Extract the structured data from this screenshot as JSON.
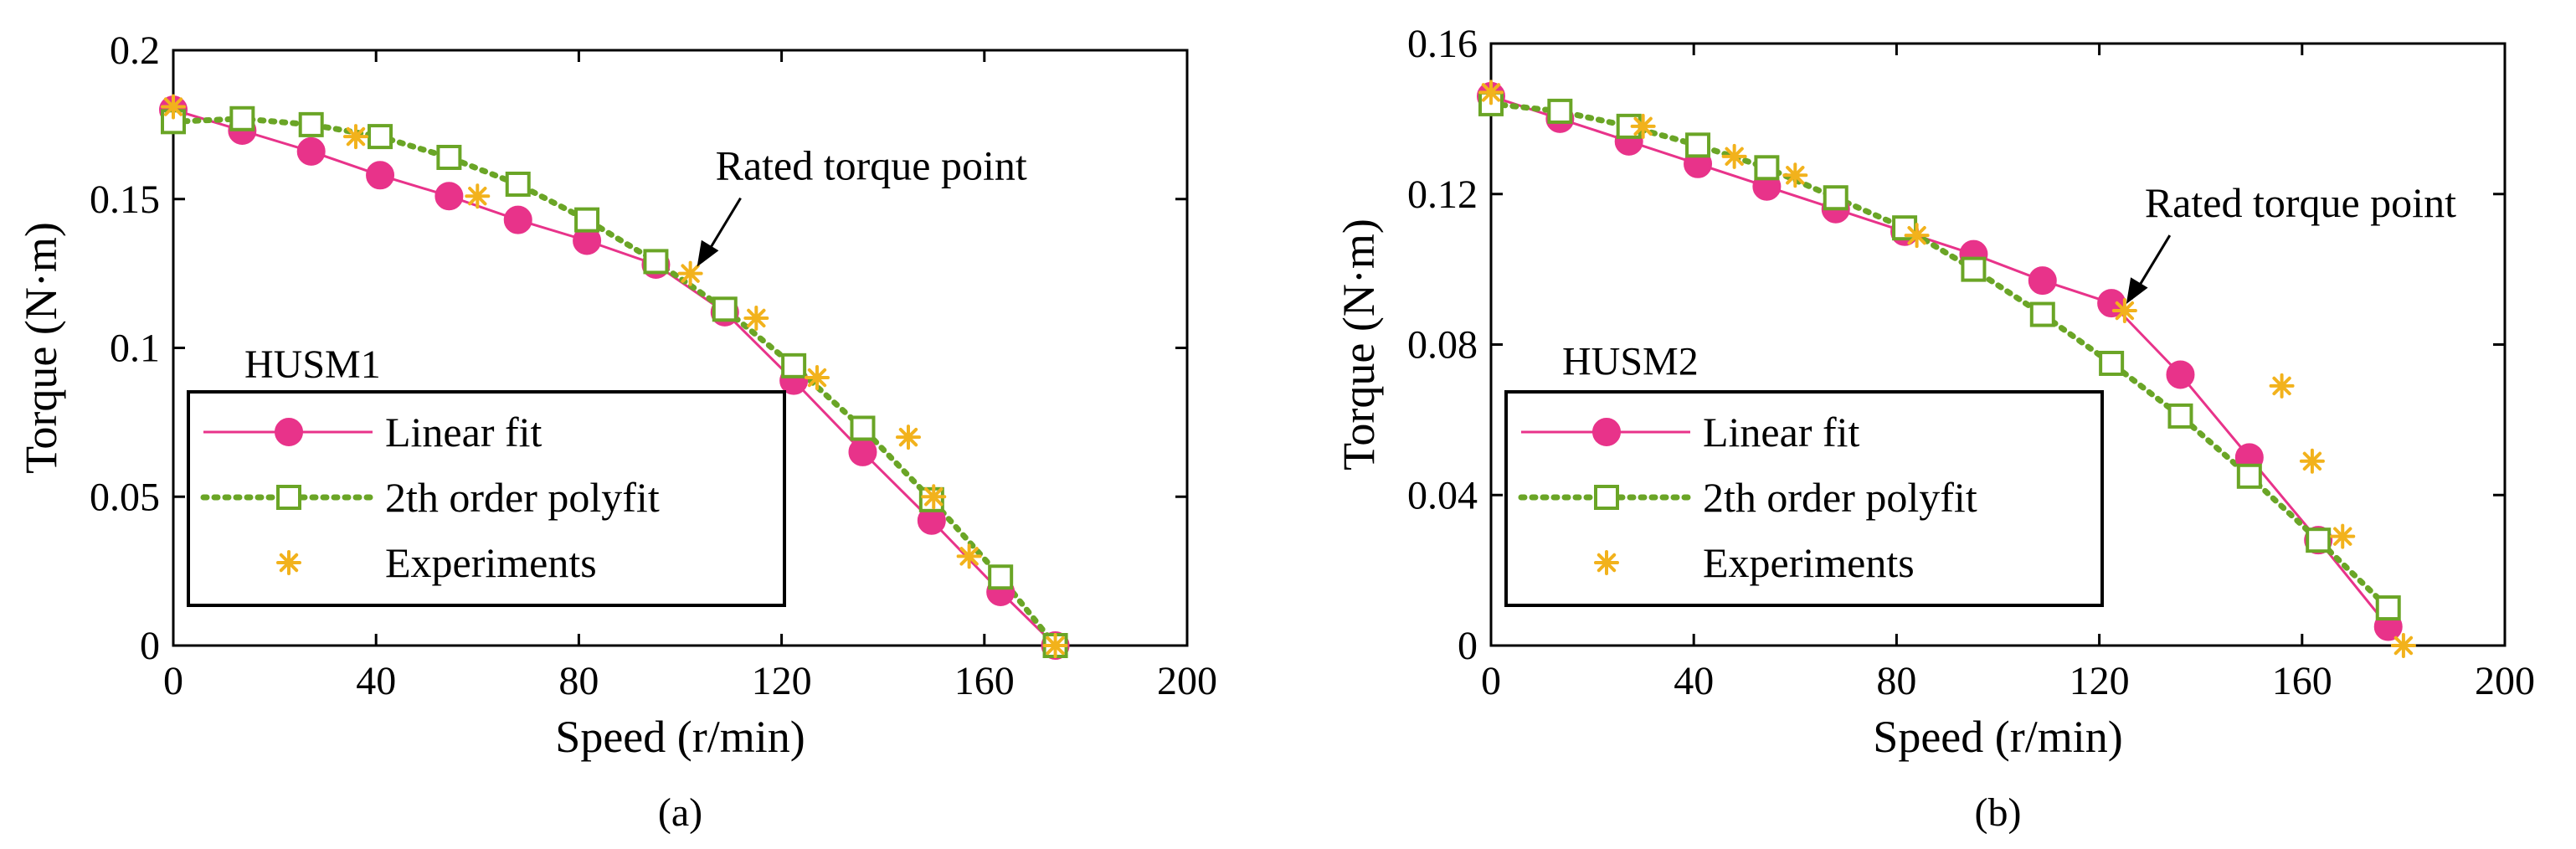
{
  "chart_data": [
    {
      "type": "line",
      "panel_label": "(a)",
      "xlabel": "Speed (r/min)",
      "ylabel": "Torque (N·m)",
      "xlim": [
        0,
        200
      ],
      "ylim": [
        0,
        0.2
      ],
      "xticks": [
        0,
        40,
        80,
        120,
        160,
        200
      ],
      "yticks": [
        0,
        0.05,
        0.1,
        0.15,
        0.2
      ],
      "ytick_labels": [
        "0",
        "0.05",
        "0.1",
        "0.15",
        "0.2"
      ],
      "inner_label": "HUSM1",
      "annotation": {
        "text": "Rated torque point",
        "x": 102,
        "y": 0.125
      },
      "legend_position": "bottom-left",
      "series": [
        {
          "name": "Linear fit",
          "style": "solid-circle",
          "color": "#e8338a",
          "x": [
            0,
            13.6,
            27.2,
            40.8,
            54.4,
            68,
            81.6,
            95.2,
            108.8,
            122.4,
            136,
            149.6,
            163.2,
            174
          ],
          "y": [
            0.18,
            0.173,
            0.166,
            0.158,
            0.151,
            0.143,
            0.136,
            0.128,
            0.112,
            0.089,
            0.065,
            0.042,
            0.018,
            0
          ]
        },
        {
          "name": "2th order polyfit",
          "style": "dotted-square",
          "color": "#6aa526",
          "x": [
            0,
            13.6,
            27.2,
            40.8,
            54.4,
            68,
            81.6,
            95.2,
            108.8,
            122.4,
            136,
            149.6,
            163.2,
            174
          ],
          "y": [
            0.176,
            0.177,
            0.175,
            0.171,
            0.164,
            0.155,
            0.143,
            0.129,
            0.113,
            0.094,
            0.073,
            0.049,
            0.023,
            0
          ]
        },
        {
          "name": "Experiments",
          "style": "asterisk",
          "color": "#f2b21c",
          "x": [
            0,
            36,
            60,
            102,
            115,
            127,
            145,
            150,
            157,
            174
          ],
          "y": [
            0.181,
            0.171,
            0.151,
            0.125,
            0.11,
            0.09,
            0.07,
            0.05,
            0.03,
            0
          ]
        }
      ]
    },
    {
      "type": "line",
      "panel_label": "(b)",
      "xlabel": "Speed (r/min)",
      "ylabel": "Torque (N·m)",
      "xlim": [
        0,
        200
      ],
      "ylim": [
        0,
        0.16
      ],
      "xticks": [
        0,
        40,
        80,
        120,
        160,
        200
      ],
      "yticks": [
        0,
        0.04,
        0.08,
        0.12,
        0.16
      ],
      "ytick_labels": [
        "0",
        "0.04",
        "0.08",
        "0.12",
        "0.16"
      ],
      "inner_label": "HUSM2",
      "annotation": {
        "text": "Rated torque point",
        "x": 124,
        "y": 0.089
      },
      "legend_position": "bottom-left",
      "series": [
        {
          "name": "Linear fit",
          "style": "solid-circle",
          "color": "#e8338a",
          "x": [
            0,
            13.6,
            27.2,
            40.8,
            54.4,
            68,
            81.6,
            95.2,
            108.8,
            122.4,
            136,
            149.6,
            163.2,
            177
          ],
          "y": [
            0.146,
            0.14,
            0.134,
            0.128,
            0.122,
            0.116,
            0.11,
            0.104,
            0.097,
            0.091,
            0.072,
            0.05,
            0.028,
            0.005
          ]
        },
        {
          "name": "2th order polyfit",
          "style": "dotted-square",
          "color": "#6aa526",
          "x": [
            0,
            13.6,
            27.2,
            40.8,
            54.4,
            68,
            81.6,
            95.2,
            108.8,
            122.4,
            136,
            149.6,
            163.2,
            177
          ],
          "y": [
            0.144,
            0.142,
            0.138,
            0.133,
            0.127,
            0.119,
            0.111,
            0.1,
            0.088,
            0.075,
            0.061,
            0.045,
            0.028,
            0.01
          ]
        },
        {
          "name": "Experiments",
          "style": "asterisk",
          "color": "#f2b21c",
          "x": [
            0,
            30,
            48,
            60,
            84,
            125,
            156,
            162,
            168,
            180
          ],
          "y": [
            0.147,
            0.138,
            0.13,
            0.125,
            0.109,
            0.089,
            0.069,
            0.049,
            0.029,
            0
          ]
        }
      ]
    }
  ]
}
